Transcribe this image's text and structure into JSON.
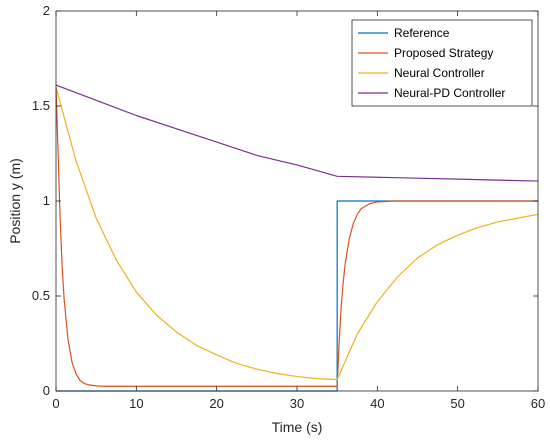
{
  "chart_data": {
    "type": "line",
    "title": "",
    "xlabel": "Time (s)",
    "ylabel": "Position y (m)",
    "xlim": [
      0,
      60
    ],
    "ylim": [
      0,
      2
    ],
    "xticks": [
      "0",
      "10",
      "20",
      "30",
      "40",
      "50",
      "60"
    ],
    "yticks": [
      "0",
      "0.5",
      "1",
      "1.5",
      "2"
    ],
    "grid": false,
    "legend_position": "top-right",
    "series": [
      {
        "name": "Reference",
        "color": "#0072BD",
        "x": [
          0,
          35,
          35,
          60
        ],
        "y": [
          0,
          0,
          1,
          1
        ]
      },
      {
        "name": "Proposed Strategy",
        "color": "#D95319",
        "x": [
          0,
          0.25,
          0.5,
          0.75,
          1,
          1.5,
          2,
          2.5,
          3,
          3.5,
          4,
          5,
          6,
          8,
          10,
          15,
          20,
          25,
          30,
          35,
          35.25,
          35.5,
          35.75,
          36,
          36.5,
          37,
          37.5,
          38,
          39,
          40,
          42,
          44,
          50,
          55,
          60
        ],
        "y": [
          1.6,
          1.27,
          0.92,
          0.67,
          0.49,
          0.27,
          0.15,
          0.09,
          0.055,
          0.04,
          0.033,
          0.027,
          0.025,
          0.025,
          0.025,
          0.025,
          0.025,
          0.025,
          0.025,
          0.025,
          0.26,
          0.44,
          0.57,
          0.67,
          0.8,
          0.88,
          0.93,
          0.96,
          0.985,
          0.995,
          1.0,
          1.0,
          1.0,
          1.0,
          1.0
        ]
      },
      {
        "name": "Neural Controller",
        "color": "#EDB120",
        "x": [
          0,
          2.5,
          5,
          7.5,
          10,
          12.5,
          15,
          17.5,
          20,
          22.5,
          25,
          27.5,
          30,
          32.5,
          35,
          37.5,
          40,
          42.5,
          45,
          47.5,
          50,
          52.5,
          55,
          57.5,
          60
        ],
        "y": [
          1.6,
          1.21,
          0.91,
          0.69,
          0.52,
          0.4,
          0.31,
          0.24,
          0.19,
          0.145,
          0.115,
          0.092,
          0.076,
          0.065,
          0.06,
          0.3,
          0.47,
          0.6,
          0.7,
          0.77,
          0.82,
          0.86,
          0.89,
          0.91,
          0.93
        ]
      },
      {
        "name": "Neural-PD Controller",
        "color": "#7E2F8E",
        "x": [
          0,
          5,
          10,
          15,
          20,
          25,
          30,
          35,
          40,
          45,
          50,
          55,
          60
        ],
        "y": [
          1.61,
          1.53,
          1.45,
          1.38,
          1.31,
          1.24,
          1.19,
          1.13,
          1.125,
          1.12,
          1.115,
          1.11,
          1.105
        ]
      }
    ]
  }
}
